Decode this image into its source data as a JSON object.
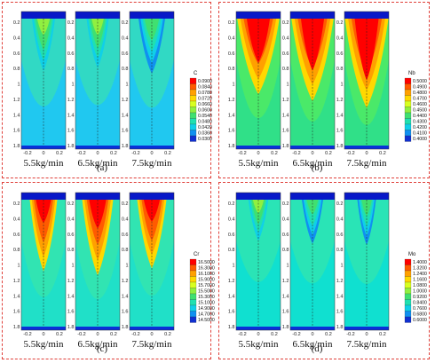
{
  "figure": {
    "panels": [
      {
        "id": "a",
        "letter": "(a)",
        "variable": "C",
        "labels": [
          "5.5kg/min",
          "6.5kg/min",
          "7.5kg/min"
        ],
        "legend": [
          "0.0900",
          "0.0840",
          "0.0780",
          "0.0720",
          "0.0660",
          "0.0600",
          "0.0540",
          "0.0480",
          "0.0420",
          "0.0360",
          "0.0300"
        ],
        "y_ticks": [
          "0.2",
          "0.4",
          "0.6",
          "0.8",
          "1",
          "1.2",
          "1.4",
          "1.6",
          "1.8"
        ],
        "x_ticks": [
          "-0.2",
          "0",
          "0.2"
        ]
      },
      {
        "id": "b",
        "letter": "(b)",
        "variable": "Nb",
        "labels": [
          "5.5kg/min",
          "6.5kg/min",
          "7.5kg/min"
        ],
        "legend": [
          "0.5000",
          "0.4900",
          "0.4800",
          "0.4700",
          "0.4600",
          "0.4500",
          "0.4400",
          "0.4300",
          "0.4200",
          "0.4100",
          "0.4000"
        ],
        "y_ticks": [
          "0.2",
          "0.4",
          "0.6",
          "0.8",
          "1",
          "1.2",
          "1.4",
          "1.6",
          "1.8"
        ],
        "x_ticks": [
          "-0.2",
          "0",
          "0.2"
        ]
      },
      {
        "id": "c",
        "letter": "(c)",
        "variable": "Cr",
        "labels": [
          "5.5kg/min",
          "6.5kg/min",
          "7.5kg/min"
        ],
        "legend": [
          "16.5000",
          "16.3000",
          "16.1000",
          "15.9000",
          "15.7000",
          "15.5000",
          "15.3000",
          "15.1000",
          "14.9000",
          "14.7000",
          "14.5000"
        ],
        "y_ticks": [
          "0.2",
          "0.4",
          "0.6",
          "0.8",
          "1",
          "1.2",
          "1.4",
          "1.6",
          "1.8"
        ],
        "x_ticks": [
          "-0.2",
          "0",
          "0.2"
        ]
      },
      {
        "id": "d",
        "letter": "(d)",
        "variable": "Mo",
        "labels": [
          "5.5kg/min",
          "6.5kg/min",
          "7.5kg/min"
        ],
        "legend": [
          "1.4000",
          "1.3200",
          "1.2400",
          "1.1600",
          "1.0800",
          "1.0000",
          "0.9200",
          "0.8400",
          "0.7600",
          "0.6800",
          "0.6000"
        ],
        "y_ticks": [
          "0.2",
          "0.4",
          "0.6",
          "0.8",
          "1",
          "1.2",
          "1.4",
          "1.6",
          "1.8"
        ],
        "x_ticks": [
          "-0.2",
          "0",
          "0.2"
        ]
      }
    ],
    "colors": {
      "border": "#e0403a",
      "scale": [
        "#ff0000",
        "#ff5a00",
        "#ffa000",
        "#ffd800",
        "#d8ff20",
        "#90f040",
        "#40e070",
        "#20e0b0",
        "#10d0e8",
        "#1090f0",
        "#1030d0"
      ]
    }
  }
}
